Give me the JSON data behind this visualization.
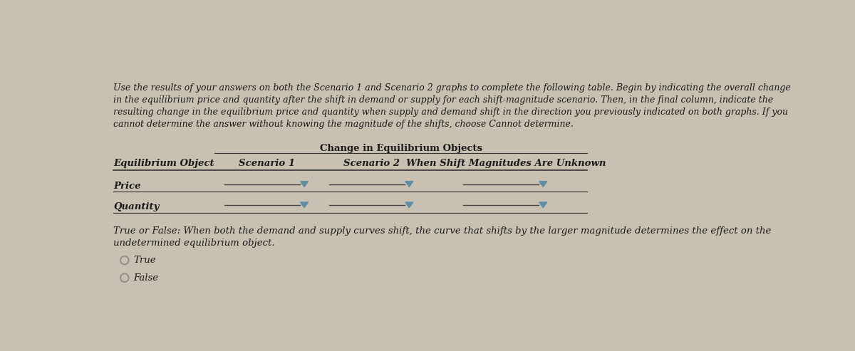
{
  "background_color": "#c8c0b0",
  "table_bg": "#e8e4dc",
  "instruction_text_line1": "Use the results of your answers on both the Scenario 1 and Scenario 2 graphs to complete the following table. Begin by indicating the overall change",
  "instruction_text_line2": "in the equilibrium price and quantity after the shift in demand or supply for each shift-magnitude scenario. Then, in the final column, indicate the",
  "instruction_text_line3": "resulting change in the equilibrium price and quantity when supply and demand shift in the direction you previously indicated on both graphs. If you",
  "instruction_text_line4": "cannot determine the answer without knowing the magnitude of the shifts, choose Cannot determine.",
  "table_header_center": "Change in Equilibrium Objects",
  "col0_header": "Equilibrium Object",
  "col1_header": "Scenario 1",
  "col2_header": "Scenario 2",
  "col3_header": "When Shift Magnitudes Are Unknown",
  "row1_label": "Price",
  "row2_label": "Quantity",
  "true_false_line1": "True or False: When both the demand and supply curves shift, the curve that shifts by the larger magnitude determines the effect on the",
  "true_false_line2": "undetermined equilibrium object.",
  "true_label": "True",
  "false_label": "False",
  "dropdown_color": "#5b8fa8",
  "line_color": "#333333",
  "text_color": "#1a1a1a",
  "header_fontsize": 9.5,
  "body_fontsize": 9.5,
  "instr_fontsize": 9.0
}
